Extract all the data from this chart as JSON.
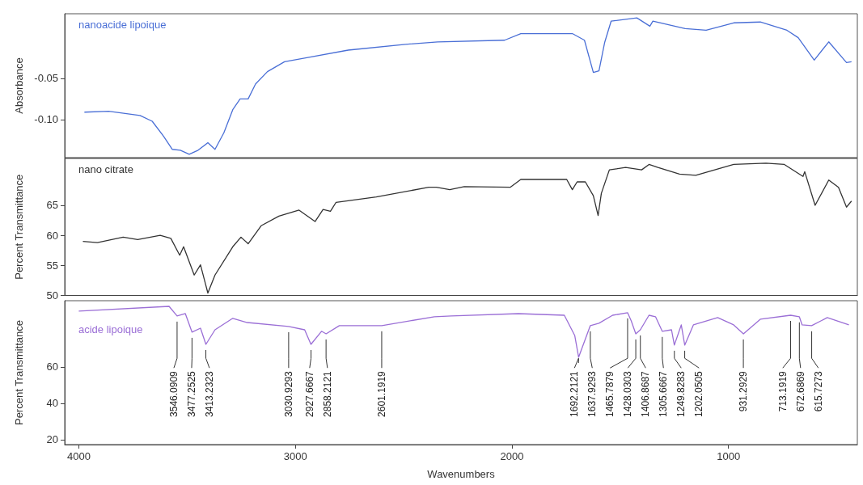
{
  "chart_data": [
    {
      "type": "line",
      "ylabel": "Absorbance",
      "xlim": [
        4065,
        405
      ],
      "ylim": [
        -0.146,
        0.028
      ],
      "yticks": [
        {
          "value": -0.1,
          "label": "-0.10"
        },
        -0.05
      ],
      "tick_labels": "y",
      "x": [
        3974,
        3862,
        3717,
        3661,
        3609,
        3568,
        3531,
        3490,
        3449,
        3404,
        3371,
        3330,
        3289,
        3255,
        3218,
        3184,
        3129,
        3050,
        2942,
        2756,
        2492,
        2343,
        2034,
        1959,
        1721,
        1665,
        1624,
        1598,
        1572,
        1542,
        1423,
        1363,
        1349,
        1200,
        1103,
        976,
        853,
        730,
        678,
        604,
        537,
        455,
        432
      ],
      "series": [
        {
          "name": "nanoacide lipoique",
          "color": "#4a6fd6",
          "values": [
            -0.091,
            -0.09,
            -0.095,
            -0.102,
            -0.12,
            -0.136,
            -0.137,
            -0.142,
            -0.137,
            -0.128,
            -0.136,
            -0.116,
            -0.088,
            -0.075,
            -0.075,
            -0.057,
            -0.042,
            -0.03,
            -0.025,
            -0.016,
            -0.009,
            -0.006,
            -0.004,
            0.004,
            0.004,
            -0.004,
            -0.043,
            -0.041,
            -0.007,
            0.019,
            0.023,
            0.013,
            0.019,
            0.01,
            0.008,
            0.017,
            0.018,
            0.008,
            -0.001,
            -0.028,
            -0.006,
            -0.031,
            -0.03
          ]
        }
      ]
    },
    {
      "type": "line",
      "ylabel": "Percent Transmittance",
      "xlim": [
        4065,
        405
      ],
      "ylim": [
        50,
        72.8
      ],
      "yticks": [
        50,
        55,
        60,
        65
      ],
      "tick_labels": "y",
      "x": [
        3981,
        3914,
        3795,
        3728,
        3624,
        3575,
        3534,
        3516,
        3467,
        3438,
        3404,
        3371,
        3289,
        3251,
        3218,
        3158,
        3076,
        2983,
        2909,
        2872,
        2838,
        2812,
        2626,
        2384,
        2349,
        2287,
        2220,
        2008,
        1959,
        1747,
        1721,
        1699,
        1661,
        1624,
        1602,
        1587,
        1550,
        1475,
        1401,
        1367,
        1326,
        1226,
        1151,
        976,
        827,
        742,
        656,
        648,
        600,
        537,
        492,
        455,
        432
      ],
      "series": [
        {
          "name": "nano citrate",
          "color": "#333333",
          "values": [
            59.0,
            58.8,
            59.7,
            59.3,
            60.0,
            59.5,
            56.7,
            58.1,
            53.4,
            55.1,
            50.4,
            53.4,
            58.1,
            59.7,
            58.6,
            61.6,
            63.2,
            64.2,
            62.3,
            64.3,
            64.0,
            65.5,
            66.4,
            68.0,
            68.0,
            67.6,
            68.1,
            68.0,
            69.3,
            69.3,
            67.6,
            68.9,
            68.9,
            66.6,
            63.3,
            67.0,
            70.9,
            71.3,
            70.9,
            71.8,
            71.3,
            70.2,
            70.0,
            71.8,
            72.0,
            71.8,
            69.8,
            70.6,
            65.0,
            69.2,
            68.0,
            64.7,
            65.7
          ]
        }
      ]
    },
    {
      "type": "line",
      "xlabel": "Wavenumbers",
      "ylabel": "Percent Transmittance",
      "xlim": [
        4065,
        405
      ],
      "xticks": [
        4000,
        3000,
        2000,
        1000
      ],
      "ylim": [
        17.3,
        96.4
      ],
      "yticks": [
        20,
        40,
        60
      ],
      "x": [
        4000,
        3583,
        3546,
        3508,
        3477,
        3438,
        3413,
        3371,
        3289,
        3222,
        3031,
        2957,
        2928,
        2879,
        2858,
        2797,
        2601,
        2358,
        2280,
        1970,
        1758,
        1710,
        1692,
        1638,
        1598,
        1535,
        1466,
        1449,
        1428,
        1407,
        1367,
        1337,
        1306,
        1263,
        1250,
        1218,
        1202,
        1162,
        1050,
        976,
        931,
        853,
        713,
        673,
        660,
        616,
        544,
        444
      ],
      "series": [
        {
          "name": "acide lipoique",
          "color": "#9b6fd6",
          "values": [
            90.7,
            93.3,
            88.0,
            89.3,
            79.1,
            81.3,
            72.4,
            80.4,
            86.7,
            84.4,
            82.2,
            80.4,
            72.4,
            79.6,
            78.2,
            82.7,
            82.7,
            87.6,
            88.0,
            89.3,
            88.4,
            77.3,
            65.3,
            82.7,
            84.0,
            88.4,
            89.8,
            85.3,
            78.2,
            80.4,
            88.4,
            87.6,
            79.6,
            80.4,
            72.0,
            83.1,
            72.0,
            83.1,
            87.1,
            83.1,
            78.2,
            86.2,
            88.4,
            87.6,
            83.1,
            82.7,
            87.1,
            83.1
          ]
        }
      ],
      "annotations": [
        {
          "text": "3546.0909",
          "x": 3546.0909,
          "y": 88.0
        },
        {
          "text": "3477.2525",
          "x": 3477.2525,
          "y": 79.1
        },
        {
          "text": "3413.2323",
          "x": 3413.2323,
          "y": 72.4
        },
        {
          "text": "3030.9293",
          "x": 3030.9293,
          "y": 82.2
        },
        {
          "text": "2927.6667",
          "x": 2927.6667,
          "y": 72.4
        },
        {
          "text": "2858.2121",
          "x": 2858.2121,
          "y": 78.2
        },
        {
          "text": "2601.1919",
          "x": 2601.1919,
          "y": 82.7
        },
        {
          "text": "1692.2121",
          "x": 1692.2121,
          "y": 65.3
        },
        {
          "text": "1637.9293",
          "x": 1637.9293,
          "y": 82.7
        },
        {
          "text": "1465.7879",
          "x": 1465.7879,
          "y": 89.8
        },
        {
          "text": "1428.0303",
          "x": 1428.0303,
          "y": 78.2
        },
        {
          "text": "1406.8687",
          "x": 1406.8687,
          "y": 80.4
        },
        {
          "text": "1305.6667",
          "x": 1305.6667,
          "y": 79.6
        },
        {
          "text": "1249.8283",
          "x": 1249.8283,
          "y": 72.0
        },
        {
          "text": "1202.0505",
          "x": 1202.0505,
          "y": 72.0
        },
        {
          "text": "931.2929",
          "x": 931.2929,
          "y": 78.2
        },
        {
          "text": "713.1919",
          "x": 713.1919,
          "y": 88.4
        },
        {
          "text": "672.6869",
          "x": 672.6869,
          "y": 87.6
        },
        {
          "text": "615.7273",
          "x": 615.7273,
          "y": 82.7
        }
      ]
    }
  ]
}
